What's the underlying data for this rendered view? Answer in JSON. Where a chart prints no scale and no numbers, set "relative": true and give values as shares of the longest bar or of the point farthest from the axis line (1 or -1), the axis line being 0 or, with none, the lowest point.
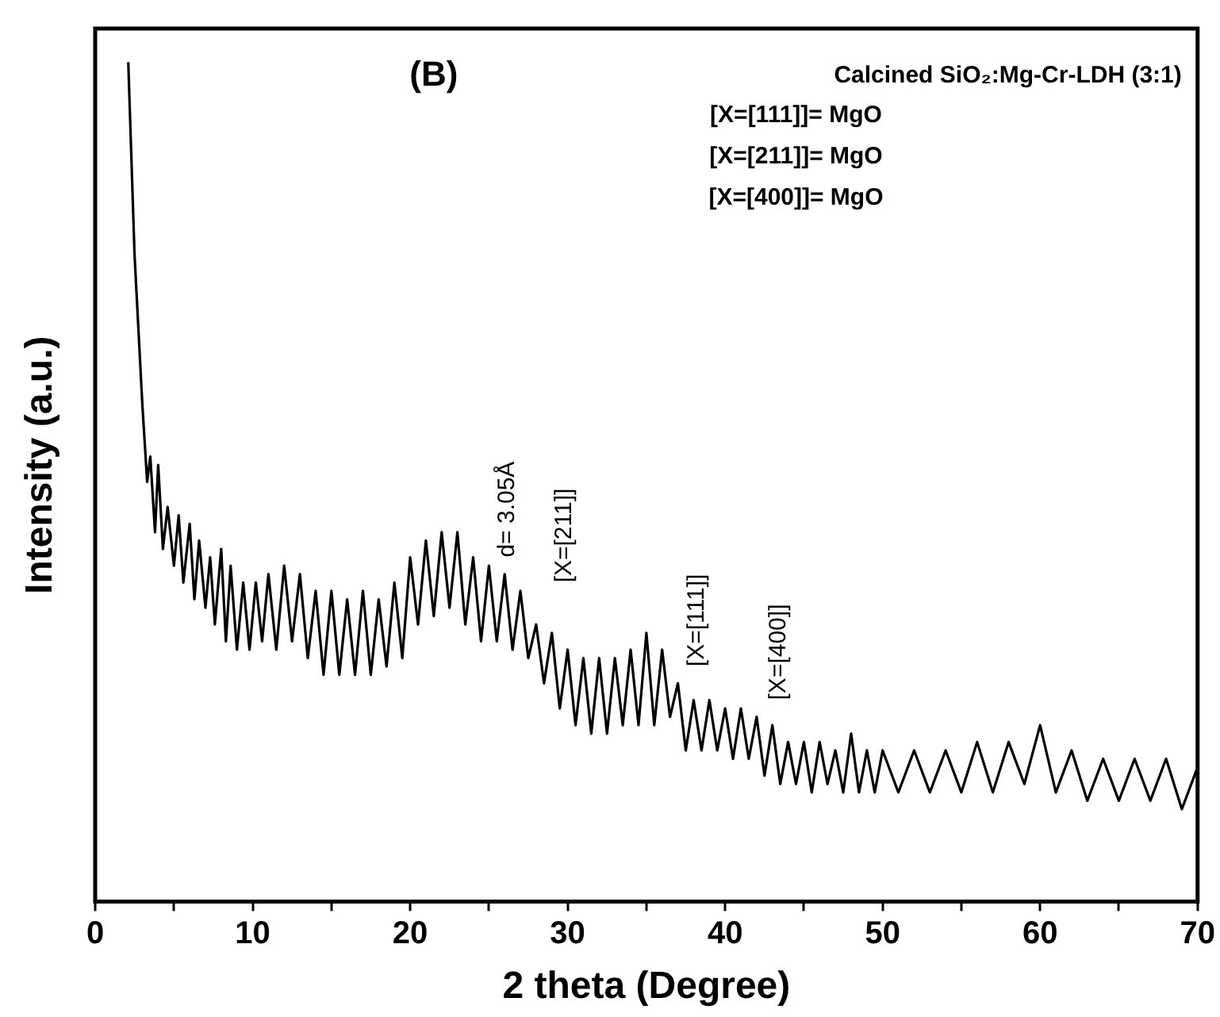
{
  "chart_data": {
    "type": "line",
    "title": "Calcined SiO₂:Mg-Cr-LDH (3:1)",
    "xlabel": "2 theta (Degree)",
    "ylabel": "Intensity (a.u.)",
    "relative": true,
    "color": "#000000",
    "marker": "none",
    "grid": false,
    "legend": false,
    "xlim": [
      0,
      70
    ],
    "xticks": [
      0,
      {
        "value": 5,
        "label": null
      },
      10,
      {
        "value": 15,
        "label": null
      },
      20,
      {
        "value": 25,
        "label": null
      },
      30,
      {
        "value": 35,
        "label": null
      },
      40,
      {
        "value": 45,
        "label": null
      },
      50,
      {
        "value": 55,
        "label": null
      },
      60,
      {
        "value": 65,
        "label": null
      },
      70
    ],
    "x": [
      2.1,
      2.5,
      3,
      3.3,
      3.5,
      3.8,
      4,
      4.3,
      4.6,
      5,
      5.3,
      5.6,
      6,
      6.3,
      6.6,
      7,
      7.3,
      7.6,
      8,
      8.3,
      8.6,
      9,
      9.4,
      9.8,
      10.2,
      10.6,
      11,
      11.5,
      12,
      12.5,
      13,
      13.5,
      14,
      14.5,
      15,
      15.5,
      16,
      16.5,
      17,
      17.5,
      18,
      18.5,
      19,
      19.5,
      20,
      20.5,
      21,
      21.5,
      22,
      22.5,
      23,
      23.5,
      24,
      24.5,
      25,
      25.5,
      26,
      26.5,
      27,
      27.5,
      28,
      28.5,
      29,
      29.5,
      30,
      30.5,
      31,
      31.5,
      32,
      32.5,
      33,
      33.5,
      34,
      34.5,
      35,
      35.5,
      36,
      36.5,
      37,
      37.5,
      38,
      38.5,
      39,
      39.5,
      40,
      40.5,
      41,
      41.5,
      42,
      42.5,
      43,
      43.5,
      44,
      44.5,
      45,
      45.5,
      46,
      46.5,
      47,
      47.5,
      48,
      48.5,
      49,
      49.5,
      50,
      51,
      52,
      53,
      54,
      55,
      56,
      57,
      58,
      59,
      60,
      61,
      62,
      63,
      64,
      65,
      66,
      67,
      68,
      69,
      70
    ],
    "values": [
      1.0,
      0.77,
      0.59,
      0.5,
      0.53,
      0.44,
      0.52,
      0.42,
      0.47,
      0.4,
      0.46,
      0.38,
      0.45,
      0.36,
      0.43,
      0.35,
      0.41,
      0.33,
      0.42,
      0.31,
      0.4,
      0.3,
      0.38,
      0.3,
      0.38,
      0.31,
      0.39,
      0.3,
      0.4,
      0.31,
      0.39,
      0.29,
      0.37,
      0.27,
      0.37,
      0.27,
      0.36,
      0.27,
      0.37,
      0.27,
      0.36,
      0.28,
      0.38,
      0.29,
      0.41,
      0.33,
      0.43,
      0.34,
      0.44,
      0.35,
      0.44,
      0.33,
      0.41,
      0.31,
      0.4,
      0.31,
      0.39,
      0.3,
      0.37,
      0.29,
      0.33,
      0.26,
      0.32,
      0.23,
      0.3,
      0.21,
      0.29,
      0.2,
      0.29,
      0.2,
      0.29,
      0.21,
      0.3,
      0.21,
      0.32,
      0.21,
      0.3,
      0.22,
      0.26,
      0.18,
      0.24,
      0.18,
      0.24,
      0.18,
      0.23,
      0.17,
      0.23,
      0.17,
      0.22,
      0.15,
      0.21,
      0.14,
      0.19,
      0.14,
      0.19,
      0.13,
      0.19,
      0.14,
      0.18,
      0.13,
      0.2,
      0.13,
      0.18,
      0.13,
      0.18,
      0.13,
      0.18,
      0.13,
      0.18,
      0.13,
      0.19,
      0.13,
      0.19,
      0.14,
      0.21,
      0.13,
      0.18,
      0.12,
      0.17,
      0.12,
      0.17,
      0.12,
      0.17,
      0.11,
      0.16
    ],
    "annotations": [
      "(B)",
      "[X=[111]]= MgO",
      "[X=[211]]= MgO",
      "[X=[400]]= MgO",
      "d= 3.05Å",
      "[X=[211]]",
      "[X=[111]]",
      "[X=[400]]"
    ]
  }
}
